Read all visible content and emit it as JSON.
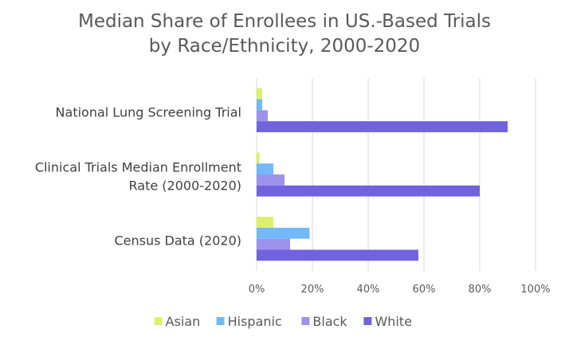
{
  "chart_data": {
    "type": "bar",
    "orientation": "horizontal",
    "title_lines": [
      "Median Share of Enrollees in US.-Based Trials",
      "by Race/Ethnicity, 2000-2020"
    ],
    "categories": [
      {
        "lines": [
          "National Lung Screening Trial"
        ]
      },
      {
        "lines": [
          "Clinical Trials Median Enrollment",
          "Rate (2000-2020)"
        ]
      },
      {
        "lines": [
          "Census Data (2020)"
        ]
      }
    ],
    "series": [
      {
        "name": "Asian",
        "color": "#dcef6e",
        "values": [
          2,
          1,
          6
        ]
      },
      {
        "name": "Hispanic",
        "color": "#74b9f7",
        "values": [
          2,
          6,
          19
        ]
      },
      {
        "name": "Black",
        "color": "#9e92ec",
        "values": [
          4,
          10,
          12
        ]
      },
      {
        "name": "White",
        "color": "#7162de",
        "values": [
          90,
          80,
          58
        ]
      }
    ],
    "xlim": [
      0,
      100
    ],
    "x_ticks": [
      0,
      20,
      40,
      60,
      80,
      100
    ],
    "x_tick_labels": [
      "0%",
      "20%",
      "40%",
      "60%",
      "80%",
      "100%"
    ],
    "grid": true,
    "legend_position": "bottom"
  }
}
